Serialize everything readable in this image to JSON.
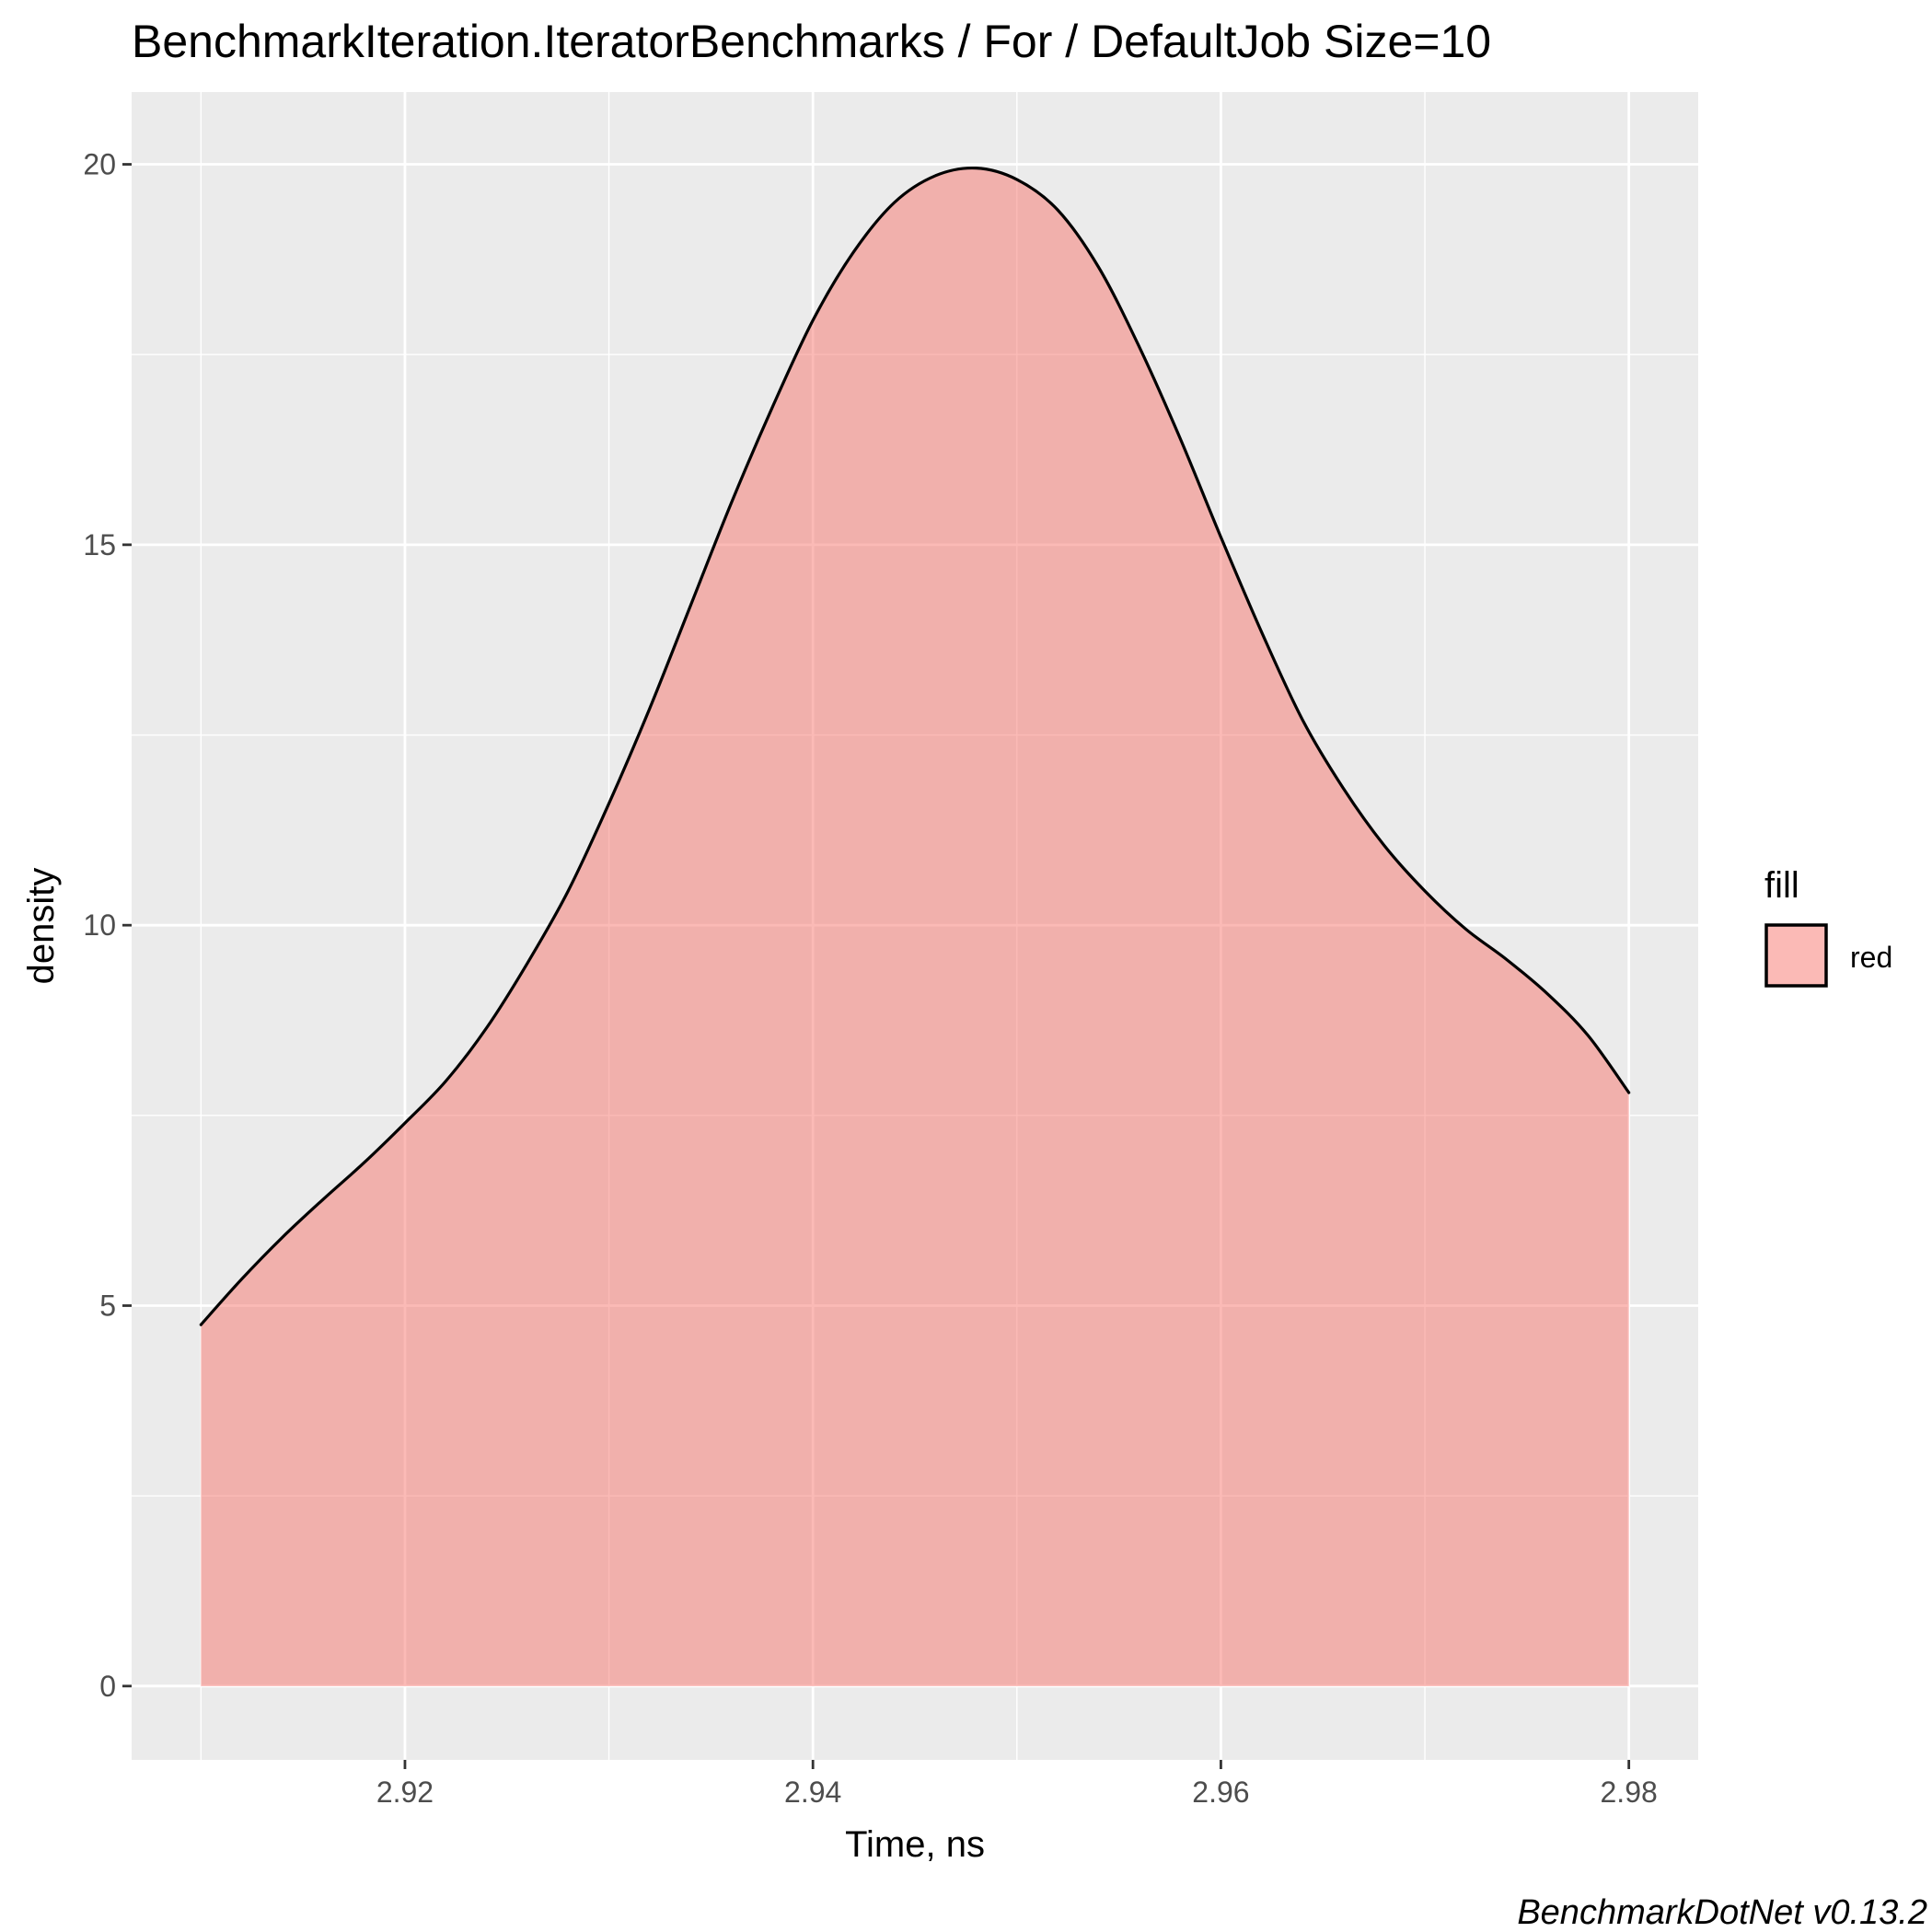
{
  "chart_data": {
    "type": "area",
    "title": "BenchmarkIteration.IteratorBenchmarks / For / DefaultJob Size=10",
    "xlabel": "Time, ns",
    "ylabel": "density",
    "caption": "BenchmarkDotNet v0.13.2",
    "xlim": [
      2.9066,
      2.9834
    ],
    "ylim": [
      -0.97,
      20.95
    ],
    "x_ticks": [
      "2.92",
      "2.94",
      "2.96",
      "2.98"
    ],
    "x_tick_values": [
      2.92,
      2.94,
      2.96,
      2.98
    ],
    "y_ticks": [
      "0",
      "5",
      "10",
      "15",
      "20"
    ],
    "y_tick_values": [
      0,
      5,
      10,
      15,
      20
    ],
    "grid": true,
    "legend": {
      "title": "fill",
      "position": "right",
      "entries": [
        {
          "label": "red",
          "color": "#F8766D"
        }
      ]
    },
    "series": [
      {
        "name": "red",
        "fill": "#F8766D",
        "fill_opacity": 0.5,
        "stroke": "#000000",
        "x": [
          2.91,
          2.912,
          2.914,
          2.916,
          2.918,
          2.92,
          2.922,
          2.924,
          2.926,
          2.928,
          2.93,
          2.932,
          2.934,
          2.936,
          2.938,
          2.94,
          2.942,
          2.944,
          2.946,
          2.948,
          2.95,
          2.952,
          2.954,
          2.956,
          2.958,
          2.96,
          2.962,
          2.964,
          2.966,
          2.968,
          2.97,
          2.972,
          2.974,
          2.976,
          2.978,
          2.98
        ],
        "y": [
          4.75,
          5.35,
          5.9,
          6.4,
          6.88,
          7.4,
          7.95,
          8.65,
          9.5,
          10.45,
          11.6,
          12.85,
          14.2,
          15.55,
          16.8,
          17.95,
          18.85,
          19.5,
          19.85,
          19.95,
          19.8,
          19.4,
          18.65,
          17.6,
          16.4,
          15.1,
          13.85,
          12.7,
          11.8,
          11.05,
          10.45,
          9.95,
          9.55,
          9.1,
          8.55,
          7.8
        ]
      }
    ]
  }
}
